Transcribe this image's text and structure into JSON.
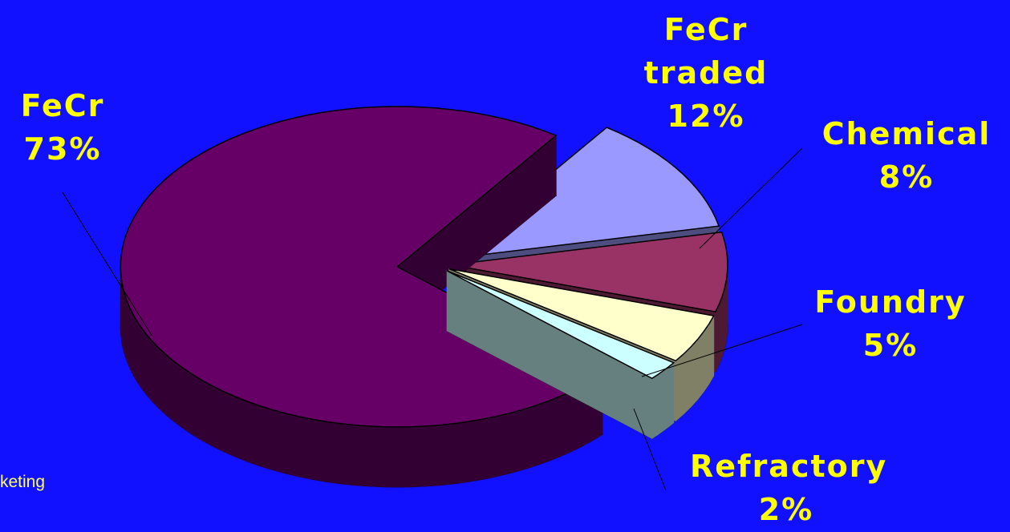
{
  "chart_data": {
    "type": "pie3d",
    "categories": [
      "FeCr",
      "FeCr traded",
      "Chemical",
      "Foundry",
      "Refractory"
    ],
    "values": [
      73,
      12,
      8,
      5,
      2
    ],
    "value_labels": [
      "73%",
      "12%",
      "8%",
      "5%",
      "2%"
    ],
    "colors": [
      "#660066",
      "#9999ff",
      "#993366",
      "#ffffcc",
      "#ccffff"
    ],
    "footer_text": "keting"
  }
}
